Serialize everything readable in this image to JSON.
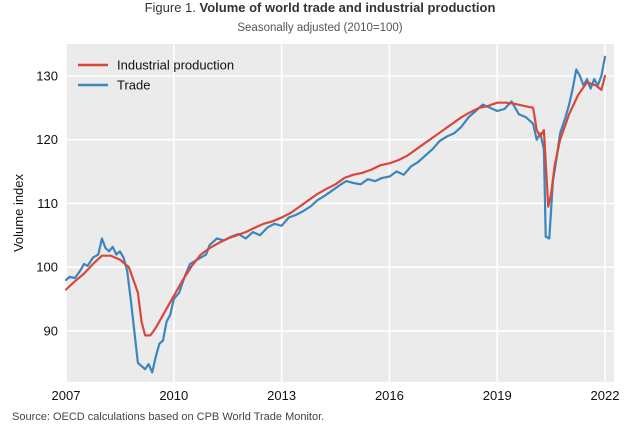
{
  "header": {
    "title_prefix": "Figure 1.",
    "title_bold": "Volume of world trade and industrial production",
    "subtitle": "Seasonally adjusted (2010=100)"
  },
  "footer": {
    "source": "Source: OECD calculations based on CPB World Trade Monitor."
  },
  "colors": {
    "industrial": "#d9473a",
    "trade": "#3a86be",
    "plot_bg": "#ebebeb",
    "grid": "#ffffff"
  },
  "chart_data": {
    "type": "line",
    "title": "Volume of world trade and industrial production",
    "subtitle": "Seasonally adjusted (2010=100)",
    "xlabel": "",
    "ylabel": "Volume index",
    "xlim": [
      2007,
      2022.25
    ],
    "ylim": [
      82,
      135
    ],
    "x_ticks": [
      2007,
      2010,
      2013,
      2016,
      2019,
      2022
    ],
    "x_tick_labels": [
      "2007",
      "2010",
      "2013",
      "2016",
      "2019",
      "2022"
    ],
    "y_ticks": [
      90,
      100,
      110,
      120,
      130
    ],
    "y_tick_labels": [
      "90",
      "100",
      "110",
      "120",
      "130"
    ],
    "legend_position": "top-left",
    "series": [
      {
        "name": "Industrial production",
        "x": [
          2007.0,
          2007.25,
          2007.5,
          2007.75,
          2008.0,
          2008.25,
          2008.5,
          2008.75,
          2009.0,
          2009.1,
          2009.2,
          2009.35,
          2009.5,
          2009.75,
          2010.0,
          2010.25,
          2010.5,
          2010.75,
          2011.0,
          2011.25,
          2011.5,
          2011.75,
          2012.0,
          2012.25,
          2012.5,
          2012.75,
          2013.0,
          2013.25,
          2013.5,
          2013.75,
          2014.0,
          2014.25,
          2014.5,
          2014.75,
          2015.0,
          2015.25,
          2015.5,
          2015.75,
          2016.0,
          2016.25,
          2016.5,
          2016.75,
          2017.0,
          2017.25,
          2017.5,
          2017.75,
          2018.0,
          2018.25,
          2018.5,
          2018.75,
          2019.0,
          2019.25,
          2019.5,
          2019.75,
          2020.0,
          2020.1,
          2020.2,
          2020.3,
          2020.42,
          2020.5,
          2020.6,
          2020.75,
          2021.0,
          2021.25,
          2021.5,
          2021.75,
          2021.9,
          2022.0
        ],
        "values": [
          96.5,
          97.8,
          99.0,
          100.5,
          101.8,
          101.8,
          101.2,
          100.0,
          96.0,
          91.5,
          89.3,
          89.3,
          90.5,
          93.0,
          95.5,
          98.0,
          100.2,
          102.0,
          103.0,
          103.8,
          104.5,
          105.0,
          105.5,
          106.2,
          106.8,
          107.2,
          107.8,
          108.5,
          109.5,
          110.5,
          111.5,
          112.3,
          113.0,
          114.0,
          114.5,
          114.8,
          115.3,
          116.0,
          116.3,
          116.8,
          117.5,
          118.5,
          119.5,
          120.5,
          121.5,
          122.5,
          123.5,
          124.3,
          125.0,
          125.3,
          125.8,
          125.8,
          125.6,
          125.3,
          125.0,
          121.5,
          120.5,
          121.5,
          109.5,
          111.5,
          116.0,
          120.0,
          124.0,
          127.0,
          129.0,
          128.5,
          127.8,
          130.0
        ]
      },
      {
        "name": "Trade",
        "x": [
          2007.0,
          2007.1,
          2007.25,
          2007.4,
          2007.5,
          2007.6,
          2007.75,
          2007.9,
          2008.0,
          2008.1,
          2008.2,
          2008.3,
          2008.4,
          2008.5,
          2008.6,
          2008.7,
          2008.8,
          2008.9,
          2009.0,
          2009.1,
          2009.2,
          2009.3,
          2009.4,
          2009.5,
          2009.6,
          2009.7,
          2009.8,
          2009.9,
          2010.0,
          2010.15,
          2010.3,
          2010.45,
          2010.6,
          2010.75,
          2010.9,
          2011.0,
          2011.2,
          2011.4,
          2011.6,
          2011.8,
          2012.0,
          2012.2,
          2012.4,
          2012.6,
          2012.8,
          2013.0,
          2013.2,
          2013.4,
          2013.6,
          2013.8,
          2014.0,
          2014.2,
          2014.4,
          2014.6,
          2014.8,
          2015.0,
          2015.2,
          2015.4,
          2015.6,
          2015.8,
          2016.0,
          2016.2,
          2016.4,
          2016.6,
          2016.8,
          2017.0,
          2017.2,
          2017.4,
          2017.6,
          2017.8,
          2018.0,
          2018.2,
          2018.4,
          2018.6,
          2018.8,
          2019.0,
          2019.2,
          2019.4,
          2019.6,
          2019.8,
          2020.0,
          2020.1,
          2020.2,
          2020.3,
          2020.35,
          2020.45,
          2020.55,
          2020.65,
          2020.75,
          2020.9,
          2021.0,
          2021.1,
          2021.2,
          2021.3,
          2021.4,
          2021.5,
          2021.6,
          2021.7,
          2021.8,
          2021.9,
          2022.0
        ],
        "values": [
          98.0,
          98.5,
          98.3,
          99.5,
          100.5,
          100.2,
          101.5,
          102.0,
          104.5,
          103.0,
          102.5,
          103.2,
          102.0,
          102.5,
          101.5,
          99.5,
          95.0,
          90.0,
          85.0,
          84.5,
          84.0,
          84.8,
          83.5,
          86.0,
          88.0,
          88.5,
          91.5,
          92.5,
          95.0,
          96.0,
          98.5,
          100.5,
          101.0,
          101.5,
          102.0,
          103.5,
          104.5,
          104.2,
          104.8,
          105.2,
          104.5,
          105.5,
          105.0,
          106.2,
          106.8,
          106.5,
          107.8,
          108.2,
          108.8,
          109.5,
          110.5,
          111.2,
          112.0,
          112.8,
          113.5,
          113.2,
          113.0,
          113.8,
          113.5,
          114.0,
          114.2,
          115.0,
          114.5,
          115.8,
          116.5,
          117.5,
          118.5,
          119.8,
          120.5,
          121.0,
          122.0,
          123.5,
          124.5,
          125.5,
          125.0,
          124.5,
          124.8,
          126.0,
          124.0,
          123.5,
          122.5,
          120.0,
          121.0,
          118.5,
          104.8,
          104.5,
          113.5,
          117.0,
          121.0,
          123.5,
          125.5,
          128.0,
          131.0,
          130.0,
          128.5,
          129.5,
          128.0,
          129.5,
          128.5,
          130.0,
          133.0
        ]
      }
    ]
  }
}
